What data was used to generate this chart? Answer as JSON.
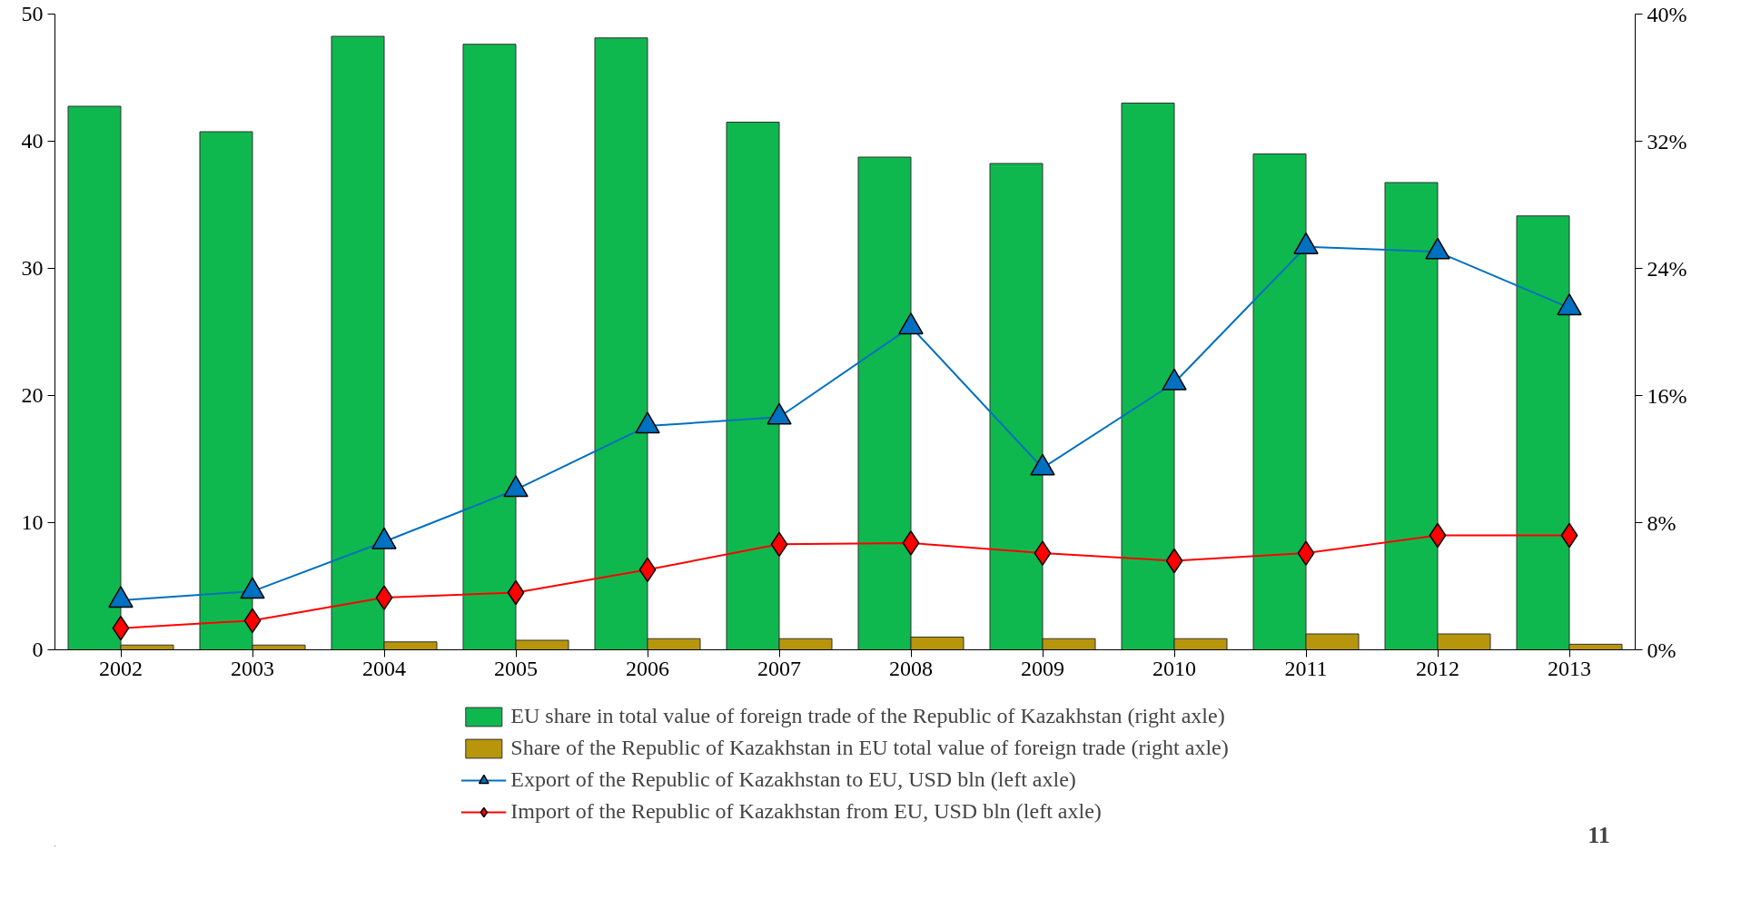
{
  "chart_data": {
    "type": "bar",
    "categories": [
      "2002",
      "2003",
      "2004",
      "2005",
      "2006",
      "2007",
      "2008",
      "2009",
      "2010",
      "2011",
      "2012",
      "2013"
    ],
    "ylim": [
      0,
      50
    ],
    "yticks": [
      0,
      10,
      20,
      30,
      40,
      50
    ],
    "y2lim": [
      0,
      40
    ],
    "y2ticks": [
      {
        "value": 0,
        "label": "0%"
      },
      {
        "value": 8,
        "label": "8%"
      },
      {
        "value": 16,
        "label": "16%"
      },
      {
        "value": 24,
        "label": "24%"
      },
      {
        "value": 32,
        "label": "32%"
      },
      {
        "value": 40,
        "label": "40%"
      }
    ],
    "legend": "bottom",
    "series": [
      {
        "name": "EU share in total value of foreign trade of the Republic of Kazakhstan (right axle)",
        "axis": "y2",
        "color": "#0fb84f",
        "values": [
          34.2,
          32.6,
          38.6,
          38.1,
          38.5,
          33.2,
          31.0,
          30.6,
          34.4,
          31.2,
          29.4,
          27.3
        ]
      },
      {
        "name": "Share of the Republic of Kazakhstan in EU total value of foreign trade (right axle)",
        "axis": "y2",
        "color": "#b8960c",
        "values": [
          0.3,
          0.3,
          0.5,
          0.6,
          0.7,
          0.7,
          0.8,
          0.7,
          0.7,
          1.0,
          1.0,
          0.35
        ]
      },
      {
        "name": "Export of the Republic of Kazakhstan to EU, USD bln (left axle)",
        "type": "line",
        "marker": "triangle",
        "color": "#0070c0",
        "values": [
          3.9,
          4.6,
          8.5,
          12.6,
          17.6,
          18.3,
          25.4,
          14.3,
          21.0,
          31.7,
          31.3,
          26.9
        ]
      },
      {
        "name": "Import of the Republic of Kazakhstan from EU, USD bln (left axle)",
        "type": "line",
        "marker": "diamond",
        "color": "#ff0000",
        "values": [
          1.7,
          2.3,
          4.1,
          4.5,
          6.3,
          8.3,
          8.4,
          7.6,
          7.0,
          7.6,
          9.0,
          9.0
        ]
      }
    ],
    "annotations": [
      "11"
    ]
  }
}
